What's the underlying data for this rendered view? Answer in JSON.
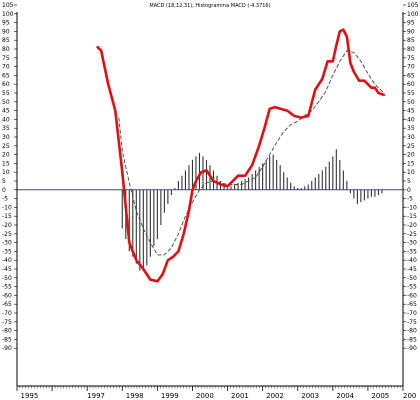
{
  "chart_data": {
    "type": "line",
    "title": "MACD (18,12,31), Histogramma MACD (-4.3716)",
    "xlabel": "",
    "ylabel": "",
    "grid": false,
    "x_range": [
      1995,
      2006
    ],
    "x_ticks": [
      "1995",
      "1997",
      "1998",
      "1999",
      "2000",
      "2001",
      "2002",
      "2003",
      "2004",
      "2005",
      "200"
    ],
    "y_ticks": [
      "105",
      "100",
      "95",
      "90",
      "85",
      "80",
      "75",
      "70",
      "65",
      "60",
      "55",
      "50",
      "45",
      "40",
      "35",
      "30",
      "25",
      "20",
      "15",
      "10",
      "5",
      "0",
      "-5",
      "-10",
      "-15",
      "-20",
      "-25",
      "-30",
      "-35",
      "-40",
      "-45",
      "-50",
      "-55",
      "-60",
      "-65",
      "-70",
      "-75",
      "-80",
      "-85",
      "-90"
    ],
    "ylim": [
      -90,
      105
    ],
    "zero_line_color": "#3a3acc",
    "colors": {
      "macd": "#e01010",
      "signal": "#444444",
      "histogram": "#333333"
    },
    "series": [
      {
        "key": "macd",
        "style": "solid",
        "x": [
          1997.3,
          1997.4,
          1997.6,
          1997.8,
          1998.0,
          1998.2,
          1998.4,
          1998.6,
          1998.8,
          1999.0,
          1999.15,
          1999.3,
          1999.45,
          1999.6,
          1999.75,
          1999.9,
          2000.0,
          2000.1,
          2000.25,
          2000.4,
          2000.6,
          2000.8,
          2001.0,
          2001.15,
          2001.3,
          2001.5,
          2001.7,
          2001.9,
          2002.05,
          2002.2,
          2002.35,
          2002.5,
          2002.7,
          2002.9,
          2003.1,
          2003.3,
          2003.5,
          2003.7,
          2003.85,
          2004.0,
          2004.1,
          2004.2,
          2004.3,
          2004.4,
          2004.5,
          2004.6,
          2004.75,
          2004.9,
          2005.1,
          2005.2,
          2005.3,
          2005.45
        ],
        "y": [
          81,
          79,
          60,
          45,
          10,
          -30,
          -40,
          -45,
          -51,
          -52,
          -48,
          -40,
          -38,
          -35,
          -25,
          -12,
          0,
          5,
          10,
          11,
          5,
          3,
          2,
          5,
          8,
          8,
          14,
          25,
          35,
          46,
          47,
          46,
          45,
          42,
          41,
          42,
          57,
          63,
          73,
          73,
          82,
          90,
          91,
          87,
          72,
          67,
          62,
          62,
          58,
          58,
          55,
          54
        ]
      },
      {
        "key": "signal",
        "style": "dashed",
        "x": [
          1997.9,
          1998.0,
          1998.2,
          1998.4,
          1998.6,
          1998.8,
          1999.0,
          1999.2,
          1999.4,
          1999.6,
          1999.8,
          2000.0,
          2000.2,
          2000.4,
          2000.6,
          2000.8,
          2001.0,
          2001.2,
          2001.4,
          2001.6,
          2001.8,
          2002.0,
          2002.2,
          2002.4,
          2002.6,
          2002.8,
          2003.0,
          2003.2,
          2003.4,
          2003.6,
          2003.8,
          2004.0,
          2004.2,
          2004.4,
          2004.6,
          2004.8,
          2005.0,
          2005.2,
          2005.45
        ],
        "y": [
          41,
          22,
          4,
          -12,
          -22,
          -30,
          -37,
          -37,
          -33,
          -25,
          -15,
          -7,
          0,
          4,
          5,
          4,
          3,
          3,
          3,
          5,
          7,
          13,
          20,
          27,
          33,
          37,
          39,
          42,
          45,
          50,
          56,
          65,
          73,
          79,
          78,
          73,
          66,
          60,
          55
        ]
      }
    ],
    "histogram": {
      "key": "histogram",
      "x": [
        1998.0,
        1998.1,
        1998.2,
        1998.3,
        1998.4,
        1998.5,
        1998.6,
        1998.7,
        1998.8,
        1998.9,
        1999.0,
        1999.1,
        1999.2,
        1999.3,
        1999.4,
        1999.5,
        1999.6,
        1999.7,
        1999.8,
        1999.9,
        2000.0,
        2000.1,
        2000.2,
        2000.3,
        2000.4,
        2000.5,
        2000.6,
        2000.7,
        2000.8,
        2000.9,
        2001.0,
        2001.1,
        2001.2,
        2001.3,
        2001.4,
        2001.5,
        2001.6,
        2001.7,
        2001.8,
        2001.9,
        2002.0,
        2002.1,
        2002.2,
        2002.3,
        2002.4,
        2002.5,
        2002.6,
        2002.7,
        2002.8,
        2002.9,
        2003.0,
        2003.1,
        2003.2,
        2003.3,
        2003.4,
        2003.5,
        2003.6,
        2003.7,
        2003.8,
        2003.9,
        2004.0,
        2004.1,
        2004.2,
        2004.3,
        2004.4,
        2004.5,
        2004.6,
        2004.7,
        2004.8,
        2004.9,
        2005.0,
        2005.1,
        2005.2,
        2005.3,
        2005.4
      ],
      "values": [
        -22,
        -28,
        -35,
        -38,
        -42,
        -46,
        -46,
        -43,
        -38,
        -32,
        -28,
        -20,
        -13,
        -8,
        -3,
        1,
        5,
        8,
        11,
        14,
        17,
        19,
        21,
        19,
        17,
        14,
        11,
        8,
        5,
        3,
        1,
        2,
        3,
        4,
        5,
        6,
        7,
        9,
        11,
        13,
        15,
        17,
        19,
        20,
        17,
        14,
        10,
        7,
        4,
        2,
        1,
        1,
        2,
        3,
        5,
        7,
        9,
        11,
        13,
        16,
        19,
        23,
        17,
        11,
        5,
        -2,
        -5,
        -8,
        -7,
        -6,
        -5,
        -4,
        -4,
        -3,
        -2
      ]
    }
  }
}
